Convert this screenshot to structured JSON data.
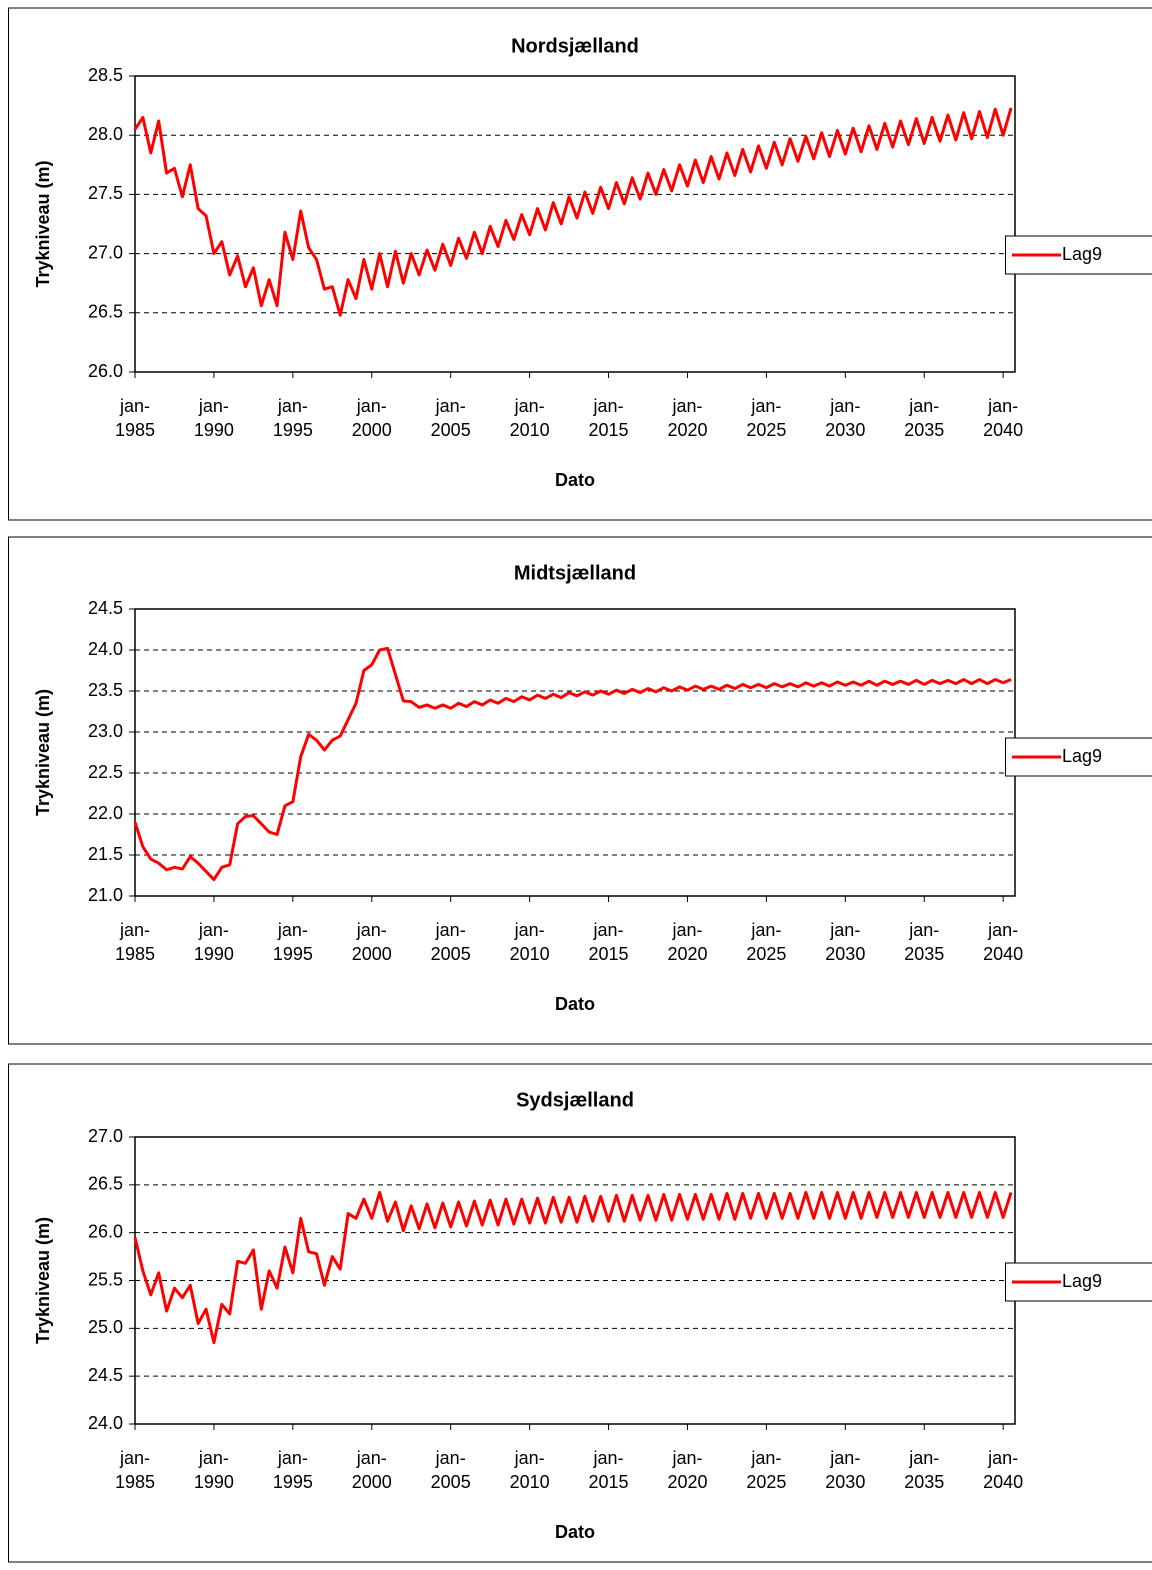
{
  "chart_data": [
    {
      "type": "line",
      "title": "Nordsjælland",
      "xlabel": "Dato",
      "ylabel": "Trykniveau (m)",
      "xlim": [
        1985,
        2040.75
      ],
      "xticks": [
        {
          "value": 1985,
          "label": "jan-1985"
        },
        {
          "value": 1990,
          "label": "jan-1990"
        },
        {
          "value": 1995,
          "label": "jan-1995"
        },
        {
          "value": 2000,
          "label": "jan-2000"
        },
        {
          "value": 2005,
          "label": "jan-2005"
        },
        {
          "value": 2010,
          "label": "jan-2010"
        },
        {
          "value": 2015,
          "label": "jan-2015"
        },
        {
          "value": 2020,
          "label": "jan-2020"
        },
        {
          "value": 2025,
          "label": "jan-2025"
        },
        {
          "value": 2030,
          "label": "jan-2030"
        },
        {
          "value": 2035,
          "label": "jan-2035"
        },
        {
          "value": 2040,
          "label": "jan-2040"
        }
      ],
      "ylim": [
        26,
        28.5
      ],
      "yticks": [
        {
          "value": 26,
          "label": "26.0"
        },
        {
          "value": 26.5,
          "label": "26.5"
        },
        {
          "value": 27,
          "label": "27.0"
        },
        {
          "value": 27.5,
          "label": "27.5"
        },
        {
          "value": 28,
          "label": "28.0"
        },
        {
          "value": 28.5,
          "label": "28.5"
        }
      ],
      "grid": true,
      "legend": "right",
      "x": [
        1985,
        1985.5,
        1986,
        1986.5,
        1987,
        1987.5,
        1988,
        1988.5,
        1989,
        1989.5,
        1990,
        1990.5,
        1991,
        1991.5,
        1992,
        1992.5,
        1993,
        1993.5,
        1994,
        1994.5,
        1995,
        1995.5,
        1996,
        1996.5,
        1997,
        1997.5,
        1998,
        1998.5,
        1999,
        1999.5,
        2000,
        2000.5,
        2001,
        2001.5,
        2002,
        2002.5,
        2003,
        2003.5,
        2004,
        2004.5,
        2005,
        2005.5,
        2006,
        2006.5,
        2007,
        2007.5,
        2008,
        2008.5,
        2009,
        2009.5,
        2010,
        2010.5,
        2011,
        2011.5,
        2012,
        2012.5,
        2013,
        2013.5,
        2014,
        2014.5,
        2015,
        2015.5,
        2016,
        2016.5,
        2017,
        2017.5,
        2018,
        2018.5,
        2019,
        2019.5,
        2020,
        2020.5,
        2021,
        2021.5,
        2022,
        2022.5,
        2023,
        2023.5,
        2024,
        2024.5,
        2025,
        2025.5,
        2026,
        2026.5,
        2027,
        2027.5,
        2028,
        2028.5,
        2029,
        2029.5,
        2030,
        2030.5,
        2031,
        2031.5,
        2032,
        2032.5,
        2033,
        2033.5,
        2034,
        2034.5,
        2035,
        2035.5,
        2036,
        2036.5,
        2037,
        2037.5,
        2038,
        2038.5,
        2039,
        2039.5,
        2040,
        2040.5
      ],
      "series": [
        {
          "name": "Lag9",
          "color": "#ff0000",
          "values": [
            28.05,
            28.15,
            27.85,
            28.12,
            27.68,
            27.72,
            27.48,
            27.75,
            27.38,
            27.32,
            27.0,
            27.1,
            26.82,
            26.98,
            26.72,
            26.88,
            26.56,
            26.78,
            26.56,
            27.18,
            26.95,
            27.36,
            27.05,
            26.95,
            26.7,
            26.72,
            26.48,
            26.78,
            26.62,
            26.95,
            26.7,
            27.0,
            26.72,
            27.02,
            26.75,
            27.0,
            26.82,
            27.03,
            26.86,
            27.08,
            26.9,
            27.13,
            26.96,
            27.18,
            27.0,
            27.23,
            27.06,
            27.28,
            27.12,
            27.33,
            27.16,
            27.38,
            27.2,
            27.43,
            27.25,
            27.48,
            27.3,
            27.52,
            27.34,
            27.56,
            27.38,
            27.6,
            27.42,
            27.64,
            27.46,
            27.68,
            27.5,
            27.71,
            27.53,
            27.75,
            27.57,
            27.79,
            27.6,
            27.82,
            27.63,
            27.85,
            27.66,
            27.88,
            27.69,
            27.91,
            27.72,
            27.94,
            27.75,
            27.97,
            27.78,
            27.99,
            27.8,
            28.02,
            27.82,
            28.04,
            27.84,
            28.06,
            27.86,
            28.08,
            27.88,
            28.1,
            27.9,
            28.12,
            27.92,
            28.14,
            27.93,
            28.15,
            27.95,
            28.17,
            27.96,
            28.19,
            27.97,
            28.2,
            27.98,
            28.22,
            28.0,
            28.23
          ]
        }
      ]
    },
    {
      "type": "line",
      "title": "Midtsjælland",
      "xlabel": "Dato",
      "ylabel": "Trykniveau (m)",
      "xlim": [
        1985,
        2040.75
      ],
      "xticks": [
        {
          "value": 1985,
          "label": "jan-1985"
        },
        {
          "value": 1990,
          "label": "jan-1990"
        },
        {
          "value": 1995,
          "label": "jan-1995"
        },
        {
          "value": 2000,
          "label": "jan-2000"
        },
        {
          "value": 2005,
          "label": "jan-2005"
        },
        {
          "value": 2010,
          "label": "jan-2010"
        },
        {
          "value": 2015,
          "label": "jan-2015"
        },
        {
          "value": 2020,
          "label": "jan-2020"
        },
        {
          "value": 2025,
          "label": "jan-2025"
        },
        {
          "value": 2030,
          "label": "jan-2030"
        },
        {
          "value": 2035,
          "label": "jan-2035"
        },
        {
          "value": 2040,
          "label": "jan-2040"
        }
      ],
      "ylim": [
        21,
        24.5
      ],
      "yticks": [
        {
          "value": 21,
          "label": "21.0"
        },
        {
          "value": 21.5,
          "label": "21.5"
        },
        {
          "value": 22,
          "label": "22.0"
        },
        {
          "value": 22.5,
          "label": "22.5"
        },
        {
          "value": 23,
          "label": "23.0"
        },
        {
          "value": 23.5,
          "label": "23.5"
        },
        {
          "value": 24,
          "label": "24.0"
        },
        {
          "value": 24.5,
          "label": "24.5"
        }
      ],
      "grid": true,
      "legend": "right",
      "x": [
        1985,
        1985.5,
        1986,
        1986.5,
        1987,
        1987.5,
        1988,
        1988.5,
        1989,
        1989.5,
        1990,
        1990.5,
        1991,
        1991.5,
        1992,
        1992.5,
        1993,
        1993.5,
        1994,
        1994.5,
        1995,
        1995.5,
        1996,
        1996.5,
        1997,
        1997.5,
        1998,
        1998.5,
        1999,
        1999.5,
        2000,
        2000.5,
        2001,
        2001.5,
        2002,
        2002.5,
        2003,
        2003.5,
        2004,
        2004.5,
        2005,
        2005.5,
        2006,
        2006.5,
        2007,
        2007.5,
        2008,
        2008.5,
        2009,
        2009.5,
        2010,
        2010.5,
        2011,
        2011.5,
        2012,
        2012.5,
        2013,
        2013.5,
        2014,
        2014.5,
        2015,
        2015.5,
        2016,
        2016.5,
        2017,
        2017.5,
        2018,
        2018.5,
        2019,
        2019.5,
        2020,
        2020.5,
        2021,
        2021.5,
        2022,
        2022.5,
        2023,
        2023.5,
        2024,
        2024.5,
        2025,
        2025.5,
        2026,
        2026.5,
        2027,
        2027.5,
        2028,
        2028.5,
        2029,
        2029.5,
        2030,
        2030.5,
        2031,
        2031.5,
        2032,
        2032.5,
        2033,
        2033.5,
        2034,
        2034.5,
        2035,
        2035.5,
        2036,
        2036.5,
        2037,
        2037.5,
        2038,
        2038.5,
        2039,
        2039.5,
        2040,
        2040.5
      ],
      "series": [
        {
          "name": "Lag9",
          "color": "#ff0000",
          "values": [
            21.9,
            21.6,
            21.45,
            21.4,
            21.32,
            21.35,
            21.33,
            21.48,
            21.4,
            21.3,
            21.2,
            21.35,
            21.38,
            21.88,
            21.97,
            21.98,
            21.88,
            21.78,
            21.75,
            22.1,
            22.15,
            22.7,
            22.97,
            22.9,
            22.78,
            22.9,
            22.95,
            23.15,
            23.35,
            23.75,
            23.82,
            24.0,
            24.02,
            23.7,
            23.38,
            23.37,
            23.3,
            23.33,
            23.29,
            23.33,
            23.29,
            23.35,
            23.31,
            23.37,
            23.33,
            23.39,
            23.35,
            23.41,
            23.37,
            23.43,
            23.39,
            23.45,
            23.41,
            23.46,
            23.42,
            23.48,
            23.44,
            23.49,
            23.45,
            23.5,
            23.46,
            23.51,
            23.47,
            23.52,
            23.48,
            23.53,
            23.49,
            23.54,
            23.5,
            23.55,
            23.51,
            23.56,
            23.52,
            23.56,
            23.52,
            23.57,
            23.53,
            23.58,
            23.54,
            23.58,
            23.54,
            23.59,
            23.55,
            23.59,
            23.55,
            23.6,
            23.56,
            23.6,
            23.56,
            23.61,
            23.57,
            23.61,
            23.57,
            23.62,
            23.57,
            23.62,
            23.58,
            23.62,
            23.58,
            23.63,
            23.58,
            23.63,
            23.59,
            23.63,
            23.59,
            23.64,
            23.59,
            23.64,
            23.59,
            23.64,
            23.6,
            23.64
          ]
        }
      ]
    },
    {
      "type": "line",
      "title": "Sydsjælland",
      "xlabel": "Dato",
      "ylabel": "Trykniveau (m)",
      "xlim": [
        1985,
        2040.75
      ],
      "xticks": [
        {
          "value": 1985,
          "label": "jan-1985"
        },
        {
          "value": 1990,
          "label": "jan-1990"
        },
        {
          "value": 1995,
          "label": "jan-1995"
        },
        {
          "value": 2000,
          "label": "jan-2000"
        },
        {
          "value": 2005,
          "label": "jan-2005"
        },
        {
          "value": 2010,
          "label": "jan-2010"
        },
        {
          "value": 2015,
          "label": "jan-2015"
        },
        {
          "value": 2020,
          "label": "jan-2020"
        },
        {
          "value": 2025,
          "label": "jan-2025"
        },
        {
          "value": 2030,
          "label": "jan-2030"
        },
        {
          "value": 2035,
          "label": "jan-2035"
        },
        {
          "value": 2040,
          "label": "jan-2040"
        }
      ],
      "ylim": [
        24,
        27
      ],
      "yticks": [
        {
          "value": 24,
          "label": "24.0"
        },
        {
          "value": 24.5,
          "label": "24.5"
        },
        {
          "value": 25,
          "label": "25.0"
        },
        {
          "value": 25.5,
          "label": "25.5"
        },
        {
          "value": 26,
          "label": "26.0"
        },
        {
          "value": 26.5,
          "label": "26.5"
        },
        {
          "value": 27,
          "label": "27.0"
        }
      ],
      "grid": true,
      "legend": "right",
      "x": [
        1985,
        1985.5,
        1986,
        1986.5,
        1987,
        1987.5,
        1988,
        1988.5,
        1989,
        1989.5,
        1990,
        1990.5,
        1991,
        1991.5,
        1992,
        1992.5,
        1993,
        1993.5,
        1994,
        1994.5,
        1995,
        1995.5,
        1996,
        1996.5,
        1997,
        1997.5,
        1998,
        1998.5,
        1999,
        1999.5,
        2000,
        2000.5,
        2001,
        2001.5,
        2002,
        2002.5,
        2003,
        2003.5,
        2004,
        2004.5,
        2005,
        2005.5,
        2006,
        2006.5,
        2007,
        2007.5,
        2008,
        2008.5,
        2009,
        2009.5,
        2010,
        2010.5,
        2011,
        2011.5,
        2012,
        2012.5,
        2013,
        2013.5,
        2014,
        2014.5,
        2015,
        2015.5,
        2016,
        2016.5,
        2017,
        2017.5,
        2018,
        2018.5,
        2019,
        2019.5,
        2020,
        2020.5,
        2021,
        2021.5,
        2022,
        2022.5,
        2023,
        2023.5,
        2024,
        2024.5,
        2025,
        2025.5,
        2026,
        2026.5,
        2027,
        2027.5,
        2028,
        2028.5,
        2029,
        2029.5,
        2030,
        2030.5,
        2031,
        2031.5,
        2032,
        2032.5,
        2033,
        2033.5,
        2034,
        2034.5,
        2035,
        2035.5,
        2036,
        2036.5,
        2037,
        2037.5,
        2038,
        2038.5,
        2039,
        2039.5,
        2040,
        2040.5
      ],
      "series": [
        {
          "name": "Lag9",
          "color": "#ff0000",
          "values": [
            25.95,
            25.6,
            25.35,
            25.58,
            25.18,
            25.42,
            25.32,
            25.45,
            25.05,
            25.2,
            24.85,
            25.25,
            25.15,
            25.7,
            25.68,
            25.82,
            25.2,
            25.6,
            25.42,
            25.85,
            25.58,
            26.15,
            25.8,
            25.78,
            25.45,
            25.75,
            25.62,
            26.2,
            26.15,
            26.35,
            26.15,
            26.42,
            26.12,
            26.32,
            26.02,
            26.28,
            26.04,
            26.3,
            26.05,
            26.31,
            26.06,
            26.32,
            26.07,
            26.33,
            26.08,
            26.34,
            26.08,
            26.35,
            26.09,
            26.35,
            26.1,
            26.36,
            26.1,
            26.37,
            26.11,
            26.37,
            26.11,
            26.38,
            26.12,
            26.38,
            26.12,
            26.39,
            26.12,
            26.39,
            26.13,
            26.39,
            26.13,
            26.4,
            26.13,
            26.4,
            26.14,
            26.4,
            26.14,
            26.4,
            26.14,
            26.41,
            26.14,
            26.41,
            26.15,
            26.41,
            26.15,
            26.41,
            26.15,
            26.41,
            26.15,
            26.42,
            26.15,
            26.42,
            26.15,
            26.42,
            26.15,
            26.42,
            26.15,
            26.42,
            26.16,
            26.42,
            26.16,
            26.42,
            26.16,
            26.42,
            26.16,
            26.42,
            26.16,
            26.42,
            26.16,
            26.42,
            26.16,
            26.42,
            26.16,
            26.42,
            26.16,
            26.42
          ]
        }
      ]
    }
  ]
}
